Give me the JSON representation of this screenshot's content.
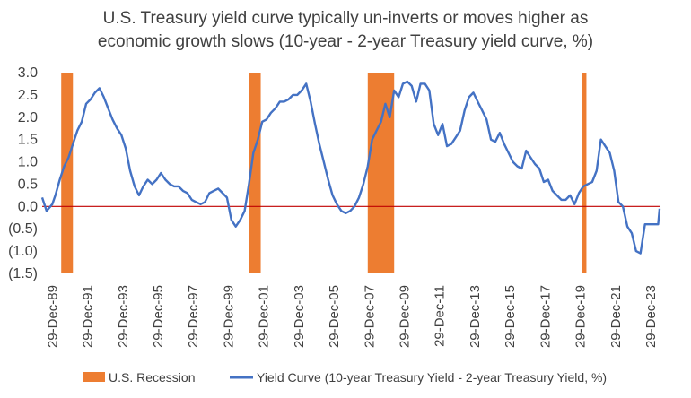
{
  "chart_data": {
    "type": "line",
    "title_lines": [
      "U.S. Treasury yield curve typically un-inverts or moves higher as",
      "economic growth slows (10-year - 2-year Treasury yield curve, %)"
    ],
    "xlabel": "",
    "ylabel": "",
    "x_tick_labels": [
      "29-Dec-89",
      "29-Dec-91",
      "29-Dec-93",
      "29-Dec-95",
      "29-Dec-97",
      "29-Dec-99",
      "29-Dec-01",
      "29-Dec-03",
      "29-Dec-05",
      "29-Dec-07",
      "29-Dec-09",
      "29-Dec-11",
      "29-Dec-13",
      "29-Dec-15",
      "29-Dec-17",
      "29-Dec-19",
      "29-Dec-21",
      "29-Dec-23"
    ],
    "y_tick_labels": [
      "3.0",
      "2.5",
      "2.0",
      "1.5",
      "1.0",
      "0.5",
      "0.0",
      "(0.5)",
      "(1.0)",
      "(1.5)"
    ],
    "y_tick_values": [
      3.0,
      2.5,
      2.0,
      1.5,
      1.0,
      0.5,
      0.0,
      -0.5,
      -1.0,
      -1.5
    ],
    "ylim": [
      -1.5,
      3.0
    ],
    "xlim": [
      "1989-06-01",
      "2024-07-01"
    ],
    "grid": false,
    "zero_line": true,
    "legend_position": "bottom",
    "series": [
      {
        "name": "Yield Curve (10-year Treasury Yield - 2-year Treasury Yield, %)",
        "color": "#4472C4",
        "points": [
          [
            "1989-06-01",
            0.2
          ],
          [
            "1989-09-01",
            -0.1
          ],
          [
            "1989-12-29",
            0.05
          ],
          [
            "1990-03-01",
            0.25
          ],
          [
            "1990-06-01",
            0.6
          ],
          [
            "1990-09-01",
            0.9
          ],
          [
            "1990-12-01",
            1.1
          ],
          [
            "1991-03-01",
            1.4
          ],
          [
            "1991-06-01",
            1.7
          ],
          [
            "1991-09-01",
            1.9
          ],
          [
            "1991-12-01",
            2.3
          ],
          [
            "1992-03-01",
            2.4
          ],
          [
            "1992-06-01",
            2.55
          ],
          [
            "1992-09-01",
            2.65
          ],
          [
            "1992-12-01",
            2.45
          ],
          [
            "1993-03-01",
            2.2
          ],
          [
            "1993-06-01",
            1.95
          ],
          [
            "1993-09-01",
            1.75
          ],
          [
            "1993-12-01",
            1.6
          ],
          [
            "1994-03-01",
            1.3
          ],
          [
            "1994-06-01",
            0.8
          ],
          [
            "1994-09-01",
            0.45
          ],
          [
            "1994-12-01",
            0.25
          ],
          [
            "1995-03-01",
            0.45
          ],
          [
            "1995-06-01",
            0.6
          ],
          [
            "1995-09-01",
            0.5
          ],
          [
            "1995-12-01",
            0.6
          ],
          [
            "1996-03-01",
            0.75
          ],
          [
            "1996-06-01",
            0.6
          ],
          [
            "1996-09-01",
            0.5
          ],
          [
            "1996-12-01",
            0.45
          ],
          [
            "1997-03-01",
            0.45
          ],
          [
            "1997-06-01",
            0.35
          ],
          [
            "1997-09-01",
            0.3
          ],
          [
            "1997-12-01",
            0.15
          ],
          [
            "1998-03-01",
            0.1
          ],
          [
            "1998-06-01",
            0.05
          ],
          [
            "1998-09-01",
            0.1
          ],
          [
            "1998-12-01",
            0.3
          ],
          [
            "1999-03-01",
            0.35
          ],
          [
            "1999-06-01",
            0.4
          ],
          [
            "1999-09-01",
            0.3
          ],
          [
            "1999-12-01",
            0.2
          ],
          [
            "2000-03-01",
            -0.3
          ],
          [
            "2000-06-01",
            -0.45
          ],
          [
            "2000-09-01",
            -0.3
          ],
          [
            "2000-12-01",
            -0.1
          ],
          [
            "2001-03-01",
            0.5
          ],
          [
            "2001-06-01",
            1.2
          ],
          [
            "2001-09-01",
            1.5
          ],
          [
            "2001-12-01",
            1.9
          ],
          [
            "2002-03-01",
            1.95
          ],
          [
            "2002-06-01",
            2.1
          ],
          [
            "2002-09-01",
            2.2
          ],
          [
            "2002-12-01",
            2.35
          ],
          [
            "2003-03-01",
            2.35
          ],
          [
            "2003-06-01",
            2.4
          ],
          [
            "2003-09-01",
            2.5
          ],
          [
            "2003-12-01",
            2.5
          ],
          [
            "2004-03-01",
            2.6
          ],
          [
            "2004-06-01",
            2.75
          ],
          [
            "2004-09-01",
            2.35
          ],
          [
            "2004-12-01",
            1.85
          ],
          [
            "2005-03-01",
            1.4
          ],
          [
            "2005-06-01",
            1.0
          ],
          [
            "2005-09-01",
            0.6
          ],
          [
            "2005-12-01",
            0.25
          ],
          [
            "2006-03-01",
            0.05
          ],
          [
            "2006-06-01",
            -0.1
          ],
          [
            "2006-09-01",
            -0.15
          ],
          [
            "2006-12-01",
            -0.1
          ],
          [
            "2007-03-01",
            0.0
          ],
          [
            "2007-06-01",
            0.2
          ],
          [
            "2007-09-01",
            0.5
          ],
          [
            "2007-12-01",
            0.9
          ],
          [
            "2008-03-01",
            1.5
          ],
          [
            "2008-06-01",
            1.7
          ],
          [
            "2008-09-01",
            1.9
          ],
          [
            "2008-12-01",
            2.3
          ],
          [
            "2009-03-01",
            2.0
          ],
          [
            "2009-06-01",
            2.6
          ],
          [
            "2009-09-01",
            2.45
          ],
          [
            "2009-12-01",
            2.75
          ],
          [
            "2010-03-01",
            2.8
          ],
          [
            "2010-06-01",
            2.7
          ],
          [
            "2010-09-01",
            2.35
          ],
          [
            "2010-12-01",
            2.75
          ],
          [
            "2011-03-01",
            2.75
          ],
          [
            "2011-06-01",
            2.6
          ],
          [
            "2011-09-01",
            1.85
          ],
          [
            "2011-12-01",
            1.6
          ],
          [
            "2012-03-01",
            1.85
          ],
          [
            "2012-06-01",
            1.35
          ],
          [
            "2012-09-01",
            1.4
          ],
          [
            "2012-12-01",
            1.55
          ],
          [
            "2013-03-01",
            1.7
          ],
          [
            "2013-06-01",
            2.15
          ],
          [
            "2013-09-01",
            2.45
          ],
          [
            "2013-12-01",
            2.55
          ],
          [
            "2014-03-01",
            2.35
          ],
          [
            "2014-06-01",
            2.15
          ],
          [
            "2014-09-01",
            1.95
          ],
          [
            "2014-12-01",
            1.5
          ],
          [
            "2015-03-01",
            1.45
          ],
          [
            "2015-06-01",
            1.65
          ],
          [
            "2015-09-01",
            1.4
          ],
          [
            "2015-12-01",
            1.2
          ],
          [
            "2016-03-01",
            1.0
          ],
          [
            "2016-06-01",
            0.9
          ],
          [
            "2016-09-01",
            0.85
          ],
          [
            "2016-12-01",
            1.25
          ],
          [
            "2017-03-01",
            1.1
          ],
          [
            "2017-06-01",
            0.95
          ],
          [
            "2017-09-01",
            0.85
          ],
          [
            "2017-12-01",
            0.55
          ],
          [
            "2018-03-01",
            0.6
          ],
          [
            "2018-06-01",
            0.35
          ],
          [
            "2018-09-01",
            0.25
          ],
          [
            "2018-12-01",
            0.15
          ],
          [
            "2019-03-01",
            0.15
          ],
          [
            "2019-06-01",
            0.25
          ],
          [
            "2019-09-01",
            0.05
          ],
          [
            "2019-12-01",
            0.3
          ],
          [
            "2020-03-01",
            0.45
          ],
          [
            "2020-06-01",
            0.5
          ],
          [
            "2020-09-01",
            0.55
          ],
          [
            "2020-12-01",
            0.8
          ],
          [
            "2021-03-01",
            1.5
          ],
          [
            "2021-06-01",
            1.35
          ],
          [
            "2021-09-01",
            1.2
          ],
          [
            "2021-12-01",
            0.8
          ],
          [
            "2022-03-01",
            0.1
          ],
          [
            "2022-06-01",
            0.0
          ],
          [
            "2022-09-01",
            -0.45
          ],
          [
            "2022-12-01",
            -0.6
          ],
          [
            "2023-03-01",
            -1.0
          ],
          [
            "2023-06-01",
            -1.05
          ],
          [
            "2023-09-01",
            -0.4
          ],
          [
            "2023-12-01",
            -0.4
          ],
          [
            "2024-03-01",
            -0.4
          ],
          [
            "2024-06-01",
            -0.4
          ],
          [
            "2024-07-01",
            -0.05
          ]
        ]
      }
    ],
    "recessions": {
      "name": "U.S. Recession",
      "color": "#ED7D31",
      "periods": [
        [
          "1990-07-01",
          "1991-03-01"
        ],
        [
          "2001-03-01",
          "2001-11-01"
        ],
        [
          "2007-12-01",
          "2009-06-01"
        ],
        [
          "2020-02-01",
          "2020-04-01"
        ]
      ]
    },
    "legend": [
      {
        "label": "U.S. Recession",
        "kind": "bar",
        "color": "#ED7D31"
      },
      {
        "label": "Yield Curve (10-year Treasury Yield - 2-year Treasury Yield, %)",
        "kind": "line",
        "color": "#4472C4"
      }
    ],
    "zero_line_color": "#C00000"
  }
}
